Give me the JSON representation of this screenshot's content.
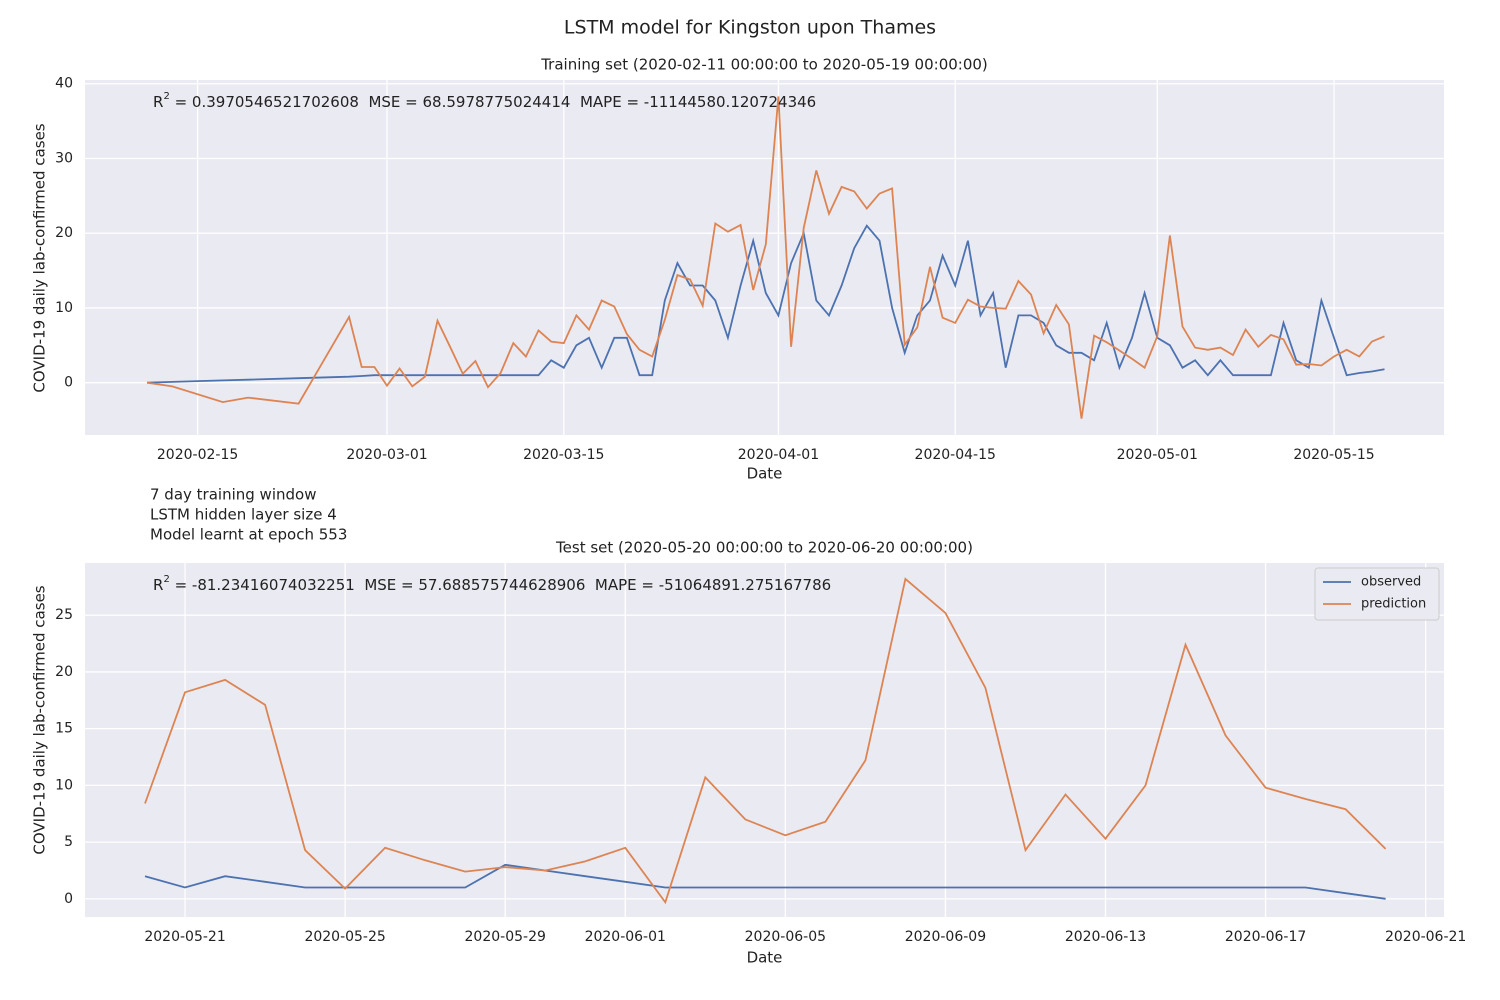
{
  "title": "LSTM model for Kingston upon Thames",
  "notes": [
    "7 day training window",
    "LSTM hidden layer size 4",
    "Model learnt at epoch 553"
  ],
  "chart_data": [
    {
      "type": "line",
      "title": "Training set (2020-02-11 00:00:00 to 2020-05-19 00:00:00)",
      "x_label": "Date",
      "y_label": "COVID-19 daily lab-confirmed cases",
      "stats": {
        "symbol": "R",
        "sup": "2",
        "text": " = 0.3970546521702608  MSE = 68.5978775024414  MAPE = -11144580.120724346"
      },
      "x": [
        "2020-02-11",
        "2020-02-13",
        "2020-02-17",
        "2020-02-19",
        "2020-02-23",
        "2020-02-27",
        "2020-02-28",
        "2020-02-29",
        "2020-03-01",
        "2020-03-02",
        "2020-03-03",
        "2020-03-04",
        "2020-03-05",
        "2020-03-06",
        "2020-03-07",
        "2020-03-08",
        "2020-03-09",
        "2020-03-10",
        "2020-03-11",
        "2020-03-12",
        "2020-03-13",
        "2020-03-14",
        "2020-03-15",
        "2020-03-16",
        "2020-03-17",
        "2020-03-18",
        "2020-03-19",
        "2020-03-20",
        "2020-03-21",
        "2020-03-22",
        "2020-03-23",
        "2020-03-24",
        "2020-03-25",
        "2020-03-26",
        "2020-03-27",
        "2020-03-28",
        "2020-03-29",
        "2020-03-30",
        "2020-03-31",
        "2020-04-01",
        "2020-04-02",
        "2020-04-03",
        "2020-04-04",
        "2020-04-05",
        "2020-04-06",
        "2020-04-07",
        "2020-04-08",
        "2020-04-09",
        "2020-04-10",
        "2020-04-11",
        "2020-04-12",
        "2020-04-13",
        "2020-04-14",
        "2020-04-15",
        "2020-04-16",
        "2020-04-17",
        "2020-04-18",
        "2020-04-19",
        "2020-04-20",
        "2020-04-21",
        "2020-04-22",
        "2020-04-23",
        "2020-04-24",
        "2020-04-25",
        "2020-04-26",
        "2020-04-27",
        "2020-04-28",
        "2020-04-29",
        "2020-04-30",
        "2020-05-01",
        "2020-05-02",
        "2020-05-03",
        "2020-05-04",
        "2020-05-05",
        "2020-05-06",
        "2020-05-07",
        "2020-05-08",
        "2020-05-09",
        "2020-05-10",
        "2020-05-11",
        "2020-05-12",
        "2020-05-13",
        "2020-05-14",
        "2020-05-15",
        "2020-05-16",
        "2020-05-17",
        "2020-05-18",
        "2020-05-19"
      ],
      "series": [
        {
          "name": "observed",
          "color": "#4c72b0",
          "values": [
            0,
            0.1,
            0.3,
            0.4,
            0.6,
            0.8,
            0.9,
            1,
            1,
            1,
            1,
            1,
            1,
            1,
            1,
            1,
            1,
            1,
            1,
            1,
            1,
            3,
            2,
            5,
            6,
            2,
            6,
            6,
            1,
            1,
            11,
            16,
            13,
            13,
            11,
            6,
            13,
            19,
            12,
            9,
            16,
            20,
            11,
            9,
            13,
            18,
            21,
            19,
            10,
            4,
            9,
            11,
            17,
            13,
            19,
            9,
            12,
            2,
            9,
            9,
            8,
            5,
            4,
            4,
            3,
            8,
            2,
            6,
            12,
            6,
            5,
            2,
            3,
            1,
            3,
            1,
            1,
            1,
            1,
            8,
            3,
            2,
            11,
            6,
            1,
            1.3,
            1.5,
            1.8
          ]
        },
        {
          "name": "prediction",
          "color": "#dd8452",
          "values": [
            0,
            -0.5,
            -2.6,
            -2,
            -2.8,
            8.8,
            2.1,
            2.1,
            -0.4,
            1.9,
            -0.5,
            0.8,
            8.3,
            4.8,
            1.2,
            2.9,
            -0.6,
            1.3,
            5.3,
            3.5,
            7,
            5.5,
            5.3,
            9,
            7.1,
            11,
            10.2,
            6.5,
            4.4,
            3.5,
            8.4,
            14.4,
            13.8,
            10.3,
            21.3,
            20.2,
            21.1,
            12.4,
            18.5,
            38.3,
            4.8,
            20.7,
            28.4,
            22.6,
            26.2,
            25.6,
            23.3,
            25.3,
            26,
            5.1,
            7.4,
            15.5,
            8.7,
            8,
            11.1,
            10.2,
            10,
            9.9,
            13.6,
            11.8,
            6.6,
            10.4,
            7.8,
            -4.8,
            6.3,
            5.4,
            4.3,
            3.2,
            2,
            6.2,
            19.7,
            7.5,
            4.7,
            4.4,
            4.7,
            3.7,
            7.1,
            4.8,
            6.4,
            5.8,
            2.4,
            2.5,
            2.3,
            3.5,
            4.4,
            3.5,
            5.5,
            6.2
          ]
        }
      ],
      "xlim": [
        "2020-02-06T02:00",
        "2020-05-23T17:00"
      ],
      "xticks": [
        "2020-02-15",
        "2020-03-01",
        "2020-03-15",
        "2020-04-01",
        "2020-04-15",
        "2020-05-01",
        "2020-05-15"
      ],
      "ylim": [
        -7,
        40.5
      ],
      "yticks": [
        0,
        10,
        20,
        30,
        40
      ],
      "grid": true
    },
    {
      "type": "line",
      "title": "Test set (2020-05-20 00:00:00 to 2020-06-20 00:00:00)",
      "x_label": "Date",
      "y_label": "COVID-19 daily lab-confirmed cases",
      "stats": {
        "symbol": "R",
        "sup": "2",
        "text": " = -81.23416074032251  MSE = 57.688575744628906  MAPE = -51064891.275167786"
      },
      "x": [
        "2020-05-20",
        "2020-05-21",
        "2020-05-22",
        "2020-05-23",
        "2020-05-24",
        "2020-05-25",
        "2020-05-26",
        "2020-05-27",
        "2020-05-28",
        "2020-05-29",
        "2020-05-30",
        "2020-05-31",
        "2020-06-01",
        "2020-06-02",
        "2020-06-03",
        "2020-06-04",
        "2020-06-05",
        "2020-06-06",
        "2020-06-07",
        "2020-06-08",
        "2020-06-09",
        "2020-06-10",
        "2020-06-11",
        "2020-06-12",
        "2020-06-13",
        "2020-06-14",
        "2020-06-15",
        "2020-06-16",
        "2020-06-17",
        "2020-06-18",
        "2020-06-19",
        "2020-06-20"
      ],
      "series": [
        {
          "name": "observed",
          "color": "#4c72b0",
          "values": [
            2,
            1,
            2,
            1.5,
            1,
            1,
            1,
            1,
            1,
            3,
            2.5,
            2,
            1.5,
            1,
            1,
            1,
            1,
            1,
            1,
            1,
            1,
            1,
            1,
            1,
            1,
            1,
            1,
            1,
            1,
            1,
            0.5,
            0
          ]
        },
        {
          "name": "prediction",
          "color": "#dd8452",
          "values": [
            8.4,
            18.2,
            19.3,
            17.1,
            4.3,
            0.9,
            4.5,
            3.4,
            2.4,
            2.8,
            2.5,
            3.3,
            4.5,
            -0.3,
            10.7,
            7,
            5.6,
            6.8,
            12.2,
            28.2,
            25.2,
            18.6,
            4.3,
            9.2,
            5.3,
            10,
            22.4,
            14.4,
            9.8,
            8.8,
            7.9,
            4.4
          ]
        }
      ],
      "xlim": [
        "2020-05-18T12:00",
        "2020-06-21T11:00"
      ],
      "xticks": [
        "2020-05-21",
        "2020-05-25",
        "2020-05-29",
        "2020-06-01",
        "2020-06-05",
        "2020-06-09",
        "2020-06-13",
        "2020-06-17",
        "2020-06-21"
      ],
      "ylim": [
        -1.6,
        29.6
      ],
      "yticks": [
        0,
        5,
        10,
        15,
        20,
        25
      ],
      "grid": true,
      "legend": "upper right"
    }
  ]
}
